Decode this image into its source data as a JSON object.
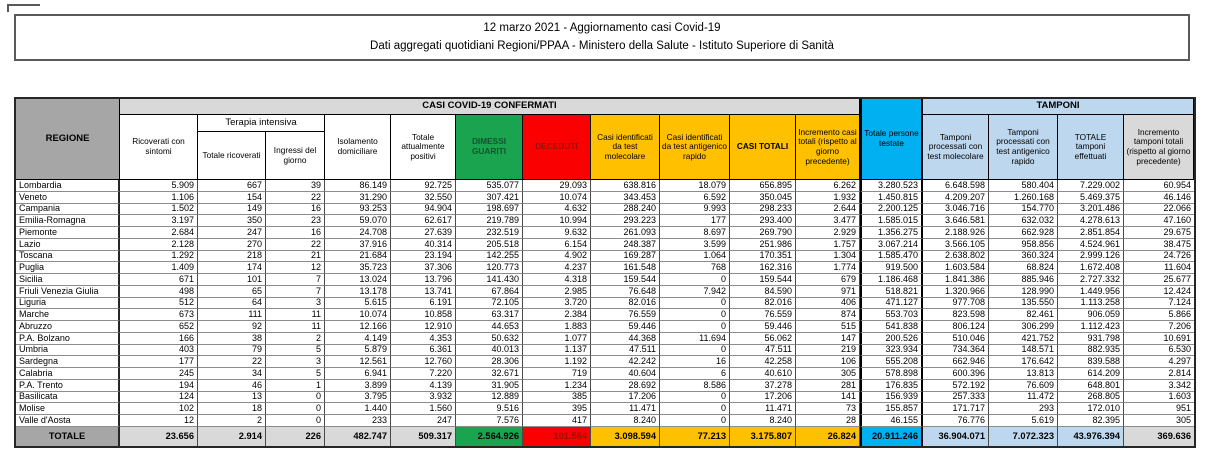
{
  "title": "12 marzo 2021 - Aggiornamento casi Covid-19",
  "subtitle": "Dati aggregati quotidiani Regioni/PPAA - Ministero della Salute - Istituto Superiore di Sanità",
  "colors": {
    "green": "#1BA44F",
    "green_text": "#14522C",
    "red": "#FB0000",
    "red_text": "#9C0F04",
    "yellow": "#FFC000",
    "cyan": "#00B0F0",
    "light_blue": "#BDD7EE",
    "gray_light": "#D9D9D9",
    "gray_dark": "#A6A6A6"
  },
  "table": {
    "groups": {
      "confirmed": "CASI COVID-19 CONFERMATI",
      "terapia": "Terapia intensiva",
      "tamponi": "TAMPONI"
    },
    "columns": [
      "REGIONE",
      "Ricoverati con sintomi",
      "Totale ricoverati",
      "Ingressi del giorno",
      "Isolamento domiciliare",
      "Totale attualmente positivi",
      "DIMESSI GUARITI",
      "DECEDUTI",
      "Casi identificati da test molecolare",
      "Casi identificati da test antigenico rapido",
      "CASI TOTALI",
      "Incremento casi totali (rispetto al giorno precedente)",
      "Totale persone testate",
      "Tamponi processati con test molecolare",
      "Tamponi processati con test antigenico rapido",
      "TOTALE tamponi effettuati",
      "Incremento tamponi totali (rispetto al giorno precedente)"
    ],
    "rows": [
      {
        "region": "Lombardia",
        "values": [
          "5.909",
          "667",
          "39",
          "86.149",
          "92.725",
          "535.077",
          "29.093",
          "638.816",
          "18.079",
          "656.895",
          "6.262",
          "3.280.523",
          "6.648.598",
          "580.404",
          "7.229.002",
          "60.954"
        ]
      },
      {
        "region": "Veneto",
        "values": [
          "1.106",
          "154",
          "22",
          "31.290",
          "32.550",
          "307.421",
          "10.074",
          "343.453",
          "6.592",
          "350.045",
          "1.932",
          "1.450.815",
          "4.209.207",
          "1.260.168",
          "5.469.375",
          "46.146"
        ]
      },
      {
        "region": "Campania",
        "values": [
          "1.502",
          "149",
          "16",
          "93.253",
          "94.904",
          "198.697",
          "4.632",
          "288.240",
          "9.993",
          "298.233",
          "2.644",
          "2.200.125",
          "3.046.716",
          "154.770",
          "3.201.486",
          "22.066"
        ]
      },
      {
        "region": "Emilia-Romagna",
        "values": [
          "3.197",
          "350",
          "23",
          "59.070",
          "62.617",
          "219.789",
          "10.994",
          "293.223",
          "177",
          "293.400",
          "3.477",
          "1.585.015",
          "3.646.581",
          "632.032",
          "4.278.613",
          "47.160"
        ]
      },
      {
        "region": "Piemonte",
        "values": [
          "2.684",
          "247",
          "16",
          "24.708",
          "27.639",
          "232.519",
          "9.632",
          "261.093",
          "8.697",
          "269.790",
          "2.929",
          "1.356.275",
          "2.188.926",
          "662.928",
          "2.851.854",
          "29.675"
        ]
      },
      {
        "region": "Lazio",
        "values": [
          "2.128",
          "270",
          "22",
          "37.916",
          "40.314",
          "205.518",
          "6.154",
          "248.387",
          "3.599",
          "251.986",
          "1.757",
          "3.067.214",
          "3.566.105",
          "958.856",
          "4.524.961",
          "38.475"
        ]
      },
      {
        "region": "Toscana",
        "values": [
          "1.292",
          "218",
          "21",
          "21.684",
          "23.194",
          "142.255",
          "4.902",
          "169.287",
          "1.064",
          "170.351",
          "1.304",
          "1.585.470",
          "2.638.802",
          "360.324",
          "2.999.126",
          "24.726"
        ]
      },
      {
        "region": "Puglia",
        "values": [
          "1.409",
          "174",
          "12",
          "35.723",
          "37.306",
          "120.773",
          "4.237",
          "161.548",
          "768",
          "162.316",
          "1.774",
          "919.500",
          "1.603.584",
          "68.824",
          "1.672.408",
          "11.604"
        ]
      },
      {
        "region": "Sicilia",
        "values": [
          "671",
          "101",
          "7",
          "13.024",
          "13.796",
          "141.430",
          "4.318",
          "159.544",
          "0",
          "159.544",
          "679",
          "1.186.468",
          "1.841.386",
          "885.946",
          "2.727.332",
          "25.677"
        ]
      },
      {
        "region": "Friuli Venezia Giulia",
        "values": [
          "498",
          "65",
          "7",
          "13.178",
          "13.741",
          "67.864",
          "2.985",
          "76.648",
          "7.942",
          "84.590",
          "971",
          "518.821",
          "1.320.966",
          "128.990",
          "1.449.956",
          "12.424"
        ]
      },
      {
        "region": "Liguria",
        "values": [
          "512",
          "64",
          "3",
          "5.615",
          "6.191",
          "72.105",
          "3.720",
          "82.016",
          "0",
          "82.016",
          "406",
          "471.127",
          "977.708",
          "135.550",
          "1.113.258",
          "7.124"
        ]
      },
      {
        "region": "Marche",
        "values": [
          "673",
          "111",
          "11",
          "10.074",
          "10.858",
          "63.317",
          "2.384",
          "76.559",
          "0",
          "76.559",
          "874",
          "553.703",
          "823.598",
          "82.461",
          "906.059",
          "5.866"
        ]
      },
      {
        "region": "Abruzzo",
        "values": [
          "652",
          "92",
          "11",
          "12.166",
          "12.910",
          "44.653",
          "1.883",
          "59.446",
          "0",
          "59.446",
          "515",
          "541.838",
          "806.124",
          "306.299",
          "1.112.423",
          "7.206"
        ]
      },
      {
        "region": "P.A. Bolzano",
        "values": [
          "166",
          "38",
          "2",
          "4.149",
          "4.353",
          "50.632",
          "1.077",
          "44.368",
          "11.694",
          "56.062",
          "147",
          "200.526",
          "510.046",
          "421.752",
          "931.798",
          "10.691"
        ]
      },
      {
        "region": "Umbria",
        "values": [
          "403",
          "79",
          "5",
          "5.879",
          "6.361",
          "40.013",
          "1.137",
          "47.511",
          "0",
          "47.511",
          "219",
          "323.934",
          "734.364",
          "148.571",
          "882.935",
          "6.530"
        ]
      },
      {
        "region": "Sardegna",
        "values": [
          "177",
          "22",
          "3",
          "12.561",
          "12.760",
          "28.306",
          "1.192",
          "42.242",
          "16",
          "42.258",
          "106",
          "555.208",
          "662.946",
          "176.642",
          "839.588",
          "4.297"
        ]
      },
      {
        "region": "Calabria",
        "values": [
          "245",
          "34",
          "5",
          "6.941",
          "7.220",
          "32.671",
          "719",
          "40.604",
          "6",
          "40.610",
          "305",
          "578.898",
          "600.396",
          "13.813",
          "614.209",
          "2.814"
        ]
      },
      {
        "region": "P.A. Trento",
        "values": [
          "194",
          "46",
          "1",
          "3.899",
          "4.139",
          "31.905",
          "1.234",
          "28.692",
          "8.586",
          "37.278",
          "281",
          "176.835",
          "572.192",
          "76.609",
          "648.801",
          "3.342"
        ]
      },
      {
        "region": "Basilicata",
        "values": [
          "124",
          "13",
          "0",
          "3.795",
          "3.932",
          "12.889",
          "385",
          "17.206",
          "0",
          "17.206",
          "141",
          "156.939",
          "257.333",
          "11.472",
          "268.805",
          "1.603"
        ]
      },
      {
        "region": "Molise",
        "values": [
          "102",
          "18",
          "0",
          "1.440",
          "1.560",
          "9.516",
          "395",
          "11.471",
          "0",
          "11.471",
          "73",
          "155.857",
          "171.717",
          "293",
          "172.010",
          "951"
        ]
      },
      {
        "region": "Valle d'Aosta",
        "values": [
          "12",
          "2",
          "0",
          "233",
          "247",
          "7.576",
          "417",
          "8.240",
          "0",
          "8.240",
          "28",
          "46.155",
          "76.776",
          "5.619",
          "82.395",
          "305"
        ]
      }
    ],
    "total": {
      "label": "TOTALE",
      "values": [
        "23.656",
        "2.914",
        "226",
        "482.747",
        "509.317",
        "2.564.926",
        "101.564",
        "3.098.594",
        "77.213",
        "3.175.807",
        "26.824",
        "20.911.246",
        "36.904.071",
        "7.072.323",
        "43.976.394",
        "369.636"
      ]
    }
  }
}
